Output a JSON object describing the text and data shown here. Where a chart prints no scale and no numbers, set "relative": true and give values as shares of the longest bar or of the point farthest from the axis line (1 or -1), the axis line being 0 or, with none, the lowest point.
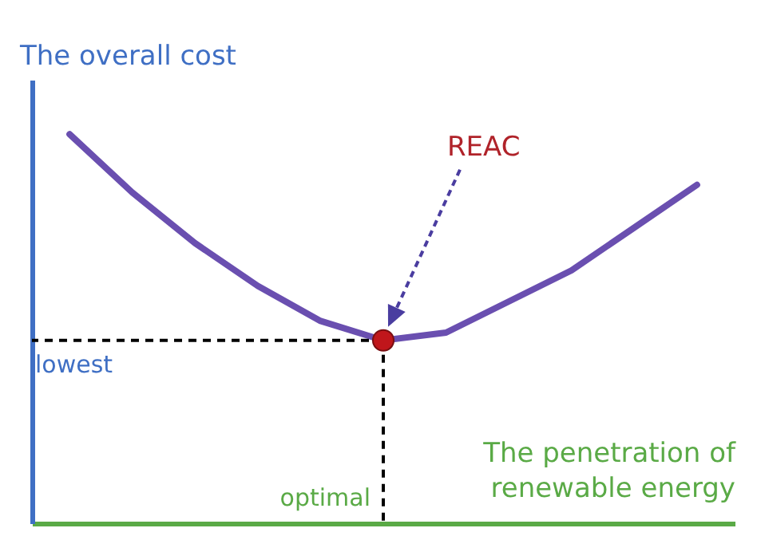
{
  "chart_data": {
    "type": "line",
    "relative": true,
    "ylabel": "The overall cost",
    "xlabel": "The penetration of renewable energy",
    "categories": [
      null,
      null,
      null,
      null,
      null,
      null,
      null,
      null,
      null,
      null,
      null
    ],
    "series": [
      {
        "color": "#6a4fb0",
        "values": [
          1,
          0.85,
          0.72,
          0.61,
          0.52,
          0.47,
          0.49,
          0.57,
          0.65,
          0.76,
          0.87
        ]
      }
    ],
    "ref_lines": [
      {
        "axis": "y",
        "value": 0.47,
        "label": "lowest",
        "line_style": "dashed",
        "color": "#000000"
      }
    ],
    "annotations": [
      "REAC",
      "optimal"
    ],
    "grid": false,
    "marker": "none",
    "line_style": "solid"
  }
}
